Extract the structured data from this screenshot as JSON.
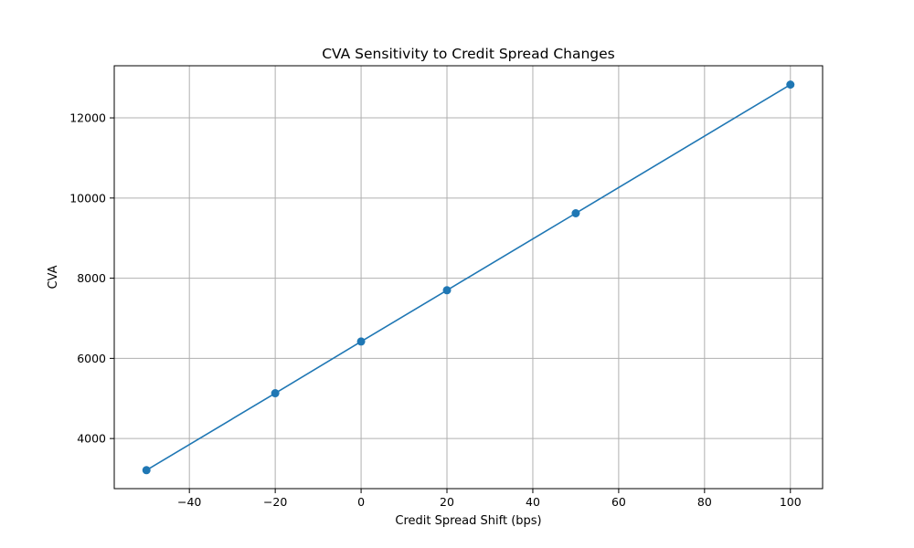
{
  "chart_data": {
    "type": "line",
    "title": "CVA Sensitivity to Credit Spread Changes",
    "xlabel": "Credit Spread Shift (bps)",
    "ylabel": "CVA",
    "x": [
      -50,
      -20,
      0,
      20,
      50,
      100
    ],
    "series": [
      {
        "values": [
          3210,
          5130,
          6420,
          7700,
          9620,
          12830
        ]
      }
    ],
    "xlim": [
      -57.5,
      107.5
    ],
    "ylim": [
      2750,
      13300
    ],
    "xticks": [
      -40,
      -20,
      0,
      20,
      40,
      60,
      80,
      100
    ],
    "yticks": [
      4000,
      6000,
      8000,
      10000,
      12000
    ],
    "xtick_labels": [
      "−40",
      "−20",
      "0",
      "20",
      "40",
      "60",
      "80",
      "100"
    ],
    "ytick_labels": [
      "4000",
      "6000",
      "8000",
      "10000",
      "12000"
    ],
    "grid": true,
    "marker": "circle",
    "color": "#1f77b4"
  }
}
